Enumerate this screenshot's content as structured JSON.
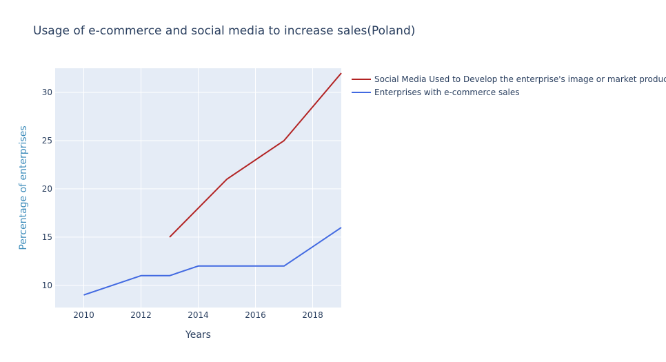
{
  "chart_data": {
    "type": "line",
    "title": "Usage of e-commerce and social media to increase sales(Poland)",
    "xlabel": "Years",
    "ylabel": "Percentage of enterprises",
    "xlim": [
      2009,
      2019
    ],
    "ylim": [
      7.7,
      32.5
    ],
    "x_ticks": [
      2010,
      2012,
      2014,
      2016,
      2018
    ],
    "y_ticks": [
      10,
      15,
      20,
      25,
      30
    ],
    "grid": true,
    "legend_position": "right",
    "plot_background": "#e5ecf6",
    "series": [
      {
        "name": "Social Media Used to Develop the enterprise's image or market products",
        "color": "#b22222",
        "x": [
          2013,
          2014,
          2015,
          2016,
          2017,
          2018,
          2019
        ],
        "y": [
          15,
          18,
          21,
          23,
          25,
          28.5,
          32
        ]
      },
      {
        "name": "Enterprises with e-commerce sales",
        "color": "#4169e1",
        "x": [
          2010,
          2011,
          2012,
          2013,
          2014,
          2015,
          2016,
          2017,
          2018,
          2019
        ],
        "y": [
          9,
          10,
          11,
          11,
          12,
          12,
          12,
          12,
          14,
          16
        ]
      }
    ]
  }
}
